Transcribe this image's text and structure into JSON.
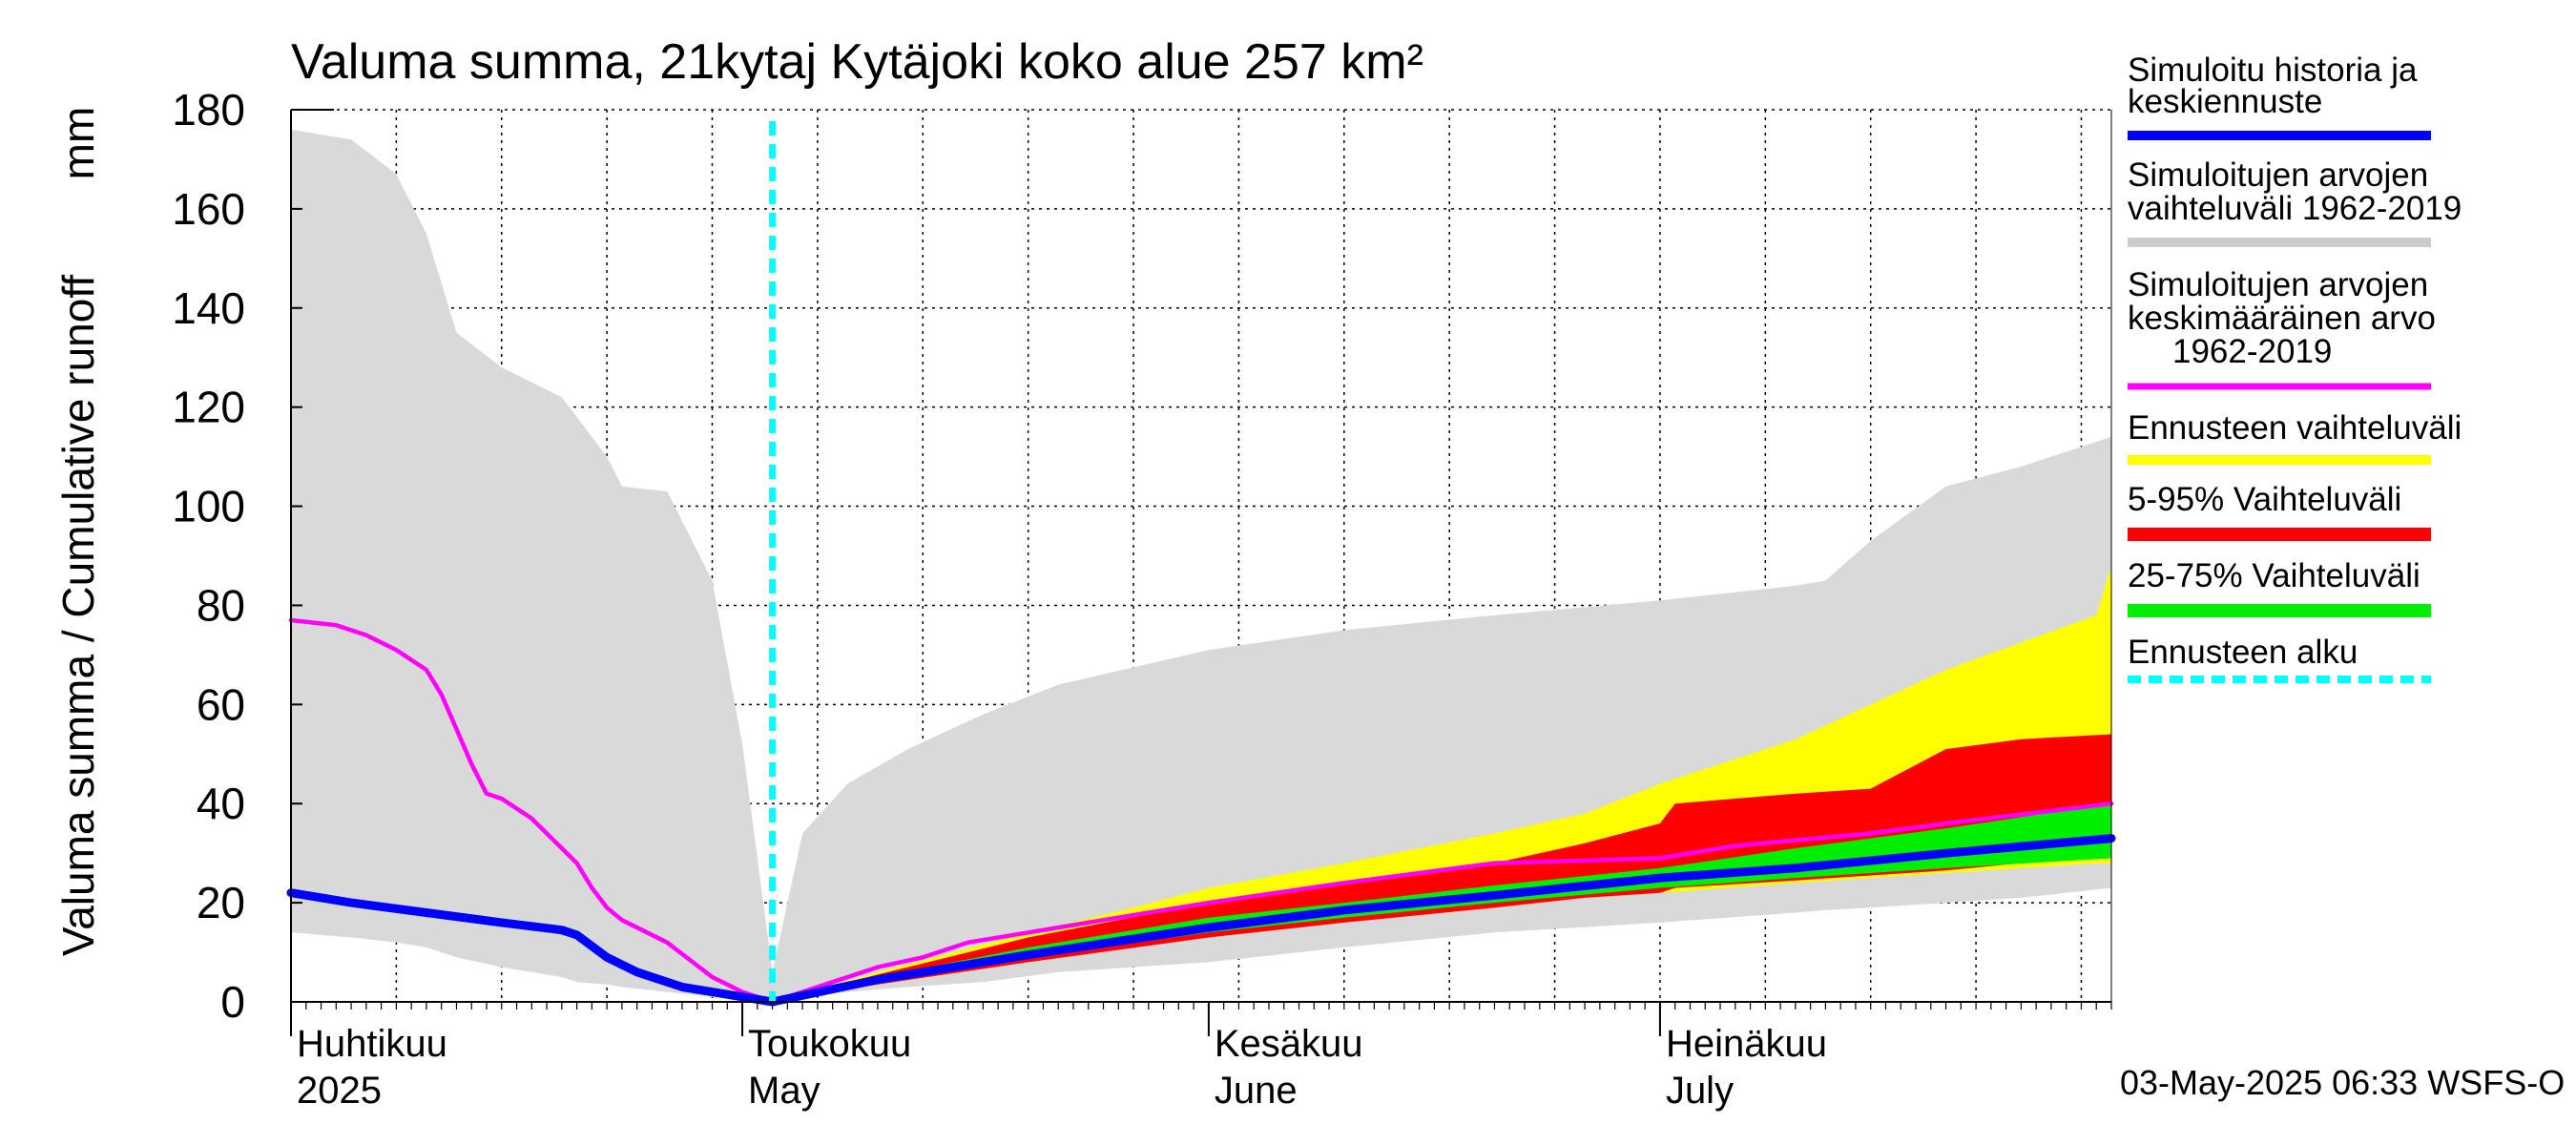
{
  "chart_data": {
    "type": "area",
    "title": "Valuma summa, 21kytaj Kytäjoki koko alue 257 km²",
    "ylabel": "Valuma summa / Cumulative runoff",
    "yunit": "mm",
    "ylim": [
      0,
      180
    ],
    "yticks": [
      0,
      20,
      40,
      60,
      80,
      100,
      120,
      140,
      160,
      180
    ],
    "xlim": [
      "2025-04-01",
      "2025-07-31"
    ],
    "grid": true,
    "legend_position": "right",
    "months": [
      {
        "label_fi": "Huhtikuu",
        "label_en": "2025",
        "date": "2025-04-01"
      },
      {
        "label_fi": "Toukokuu",
        "label_en": "May",
        "date": "2025-05-01"
      },
      {
        "label_fi": "Kesäkuu",
        "label_en": "June",
        "date": "2025-06-01"
      },
      {
        "label_fi": "Heinäkuu",
        "label_en": "July",
        "date": "2025-07-01"
      }
    ],
    "forecast_start": "2025-05-03",
    "footer": "03-May-2025 06:33 WSFS-O",
    "legend": [
      {
        "label": "Simuloitu historia ja keskiennuste",
        "color": "#0000ff",
        "style": "solid"
      },
      {
        "label": "Simuloitujen arvojen vaihteluväli 1962-2019",
        "color": "#cccccc",
        "style": "solid"
      },
      {
        "label": "Simuloitujen arvojen keskimääräinen arvo 1962-2019",
        "color": "#ff00ff",
        "style": "solid"
      },
      {
        "label": "Ennusteen vaihteluväli",
        "color": "#ffff00",
        "style": "solid"
      },
      {
        "label": "5-95% Vaihteluväli",
        "color": "#ff0000",
        "style": "solid"
      },
      {
        "label": "25-75% Vaihteluväli",
        "color": "#00ee00",
        "style": "solid"
      },
      {
        "label": "Ennusteen alku",
        "color": "#00ffff",
        "style": "dashed"
      }
    ],
    "series": [
      {
        "name": "Simuloitujen arvojen vaihteluväli 1962-2019",
        "kind": "band",
        "color": "#d9d9d9",
        "x": [
          "2025-04-01",
          "2025-04-05",
          "2025-04-08",
          "2025-04-10",
          "2025-04-12",
          "2025-04-15",
          "2025-04-19",
          "2025-04-20",
          "2025-04-22",
          "2025-04-23",
          "2025-04-26",
          "2025-04-29",
          "2025-05-01",
          "2025-05-03",
          "2025-05-05",
          "2025-05-08",
          "2025-05-12",
          "2025-05-17",
          "2025-05-22",
          "2025-06-01",
          "2025-06-10",
          "2025-06-20",
          "2025-07-01",
          "2025-07-10",
          "2025-07-12",
          "2025-07-15",
          "2025-07-20",
          "2025-07-25",
          "2025-07-31"
        ],
        "low": [
          14,
          13,
          12,
          11,
          9,
          7,
          5,
          4,
          3.5,
          3,
          2,
          1,
          0.5,
          0,
          1,
          2,
          3,
          4,
          6,
          8,
          11,
          14,
          16,
          18,
          18.5,
          19,
          20,
          21,
          23
        ],
        "high": [
          176,
          174,
          167,
          155,
          135,
          128,
          122,
          118,
          110,
          104,
          103,
          85,
          52,
          6,
          34,
          44,
          51,
          58,
          64,
          71,
          75,
          78,
          81,
          84,
          85,
          93,
          104,
          108,
          114
        ]
      },
      {
        "name": "Ennusteen vaihteluväli",
        "kind": "band",
        "color": "#ffff00",
        "x": [
          "2025-05-03",
          "2025-05-10",
          "2025-05-20",
          "2025-05-27",
          "2025-06-01",
          "2025-06-10",
          "2025-06-20",
          "2025-06-26",
          "2025-07-01",
          "2025-07-10",
          "2025-07-20",
          "2025-07-30",
          "2025-07-31"
        ],
        "low": [
          0,
          3.5,
          8,
          11,
          13,
          16,
          19,
          21,
          22,
          24,
          26,
          28,
          28
        ],
        "high": [
          0,
          6,
          14,
          19,
          23,
          28,
          34,
          38,
          44,
          53,
          67,
          78,
          88
        ]
      },
      {
        "name": "5-95% Vaihteluväli",
        "kind": "band",
        "color": "#ff0000",
        "x": [
          "2025-05-03",
          "2025-05-10",
          "2025-05-20",
          "2025-06-01",
          "2025-06-10",
          "2025-06-20",
          "2025-06-26",
          "2025-07-01",
          "2025-07-02",
          "2025-07-10",
          "2025-07-15",
          "2025-07-20",
          "2025-07-25",
          "2025-07-31"
        ],
        "low": [
          0,
          3.5,
          8,
          13,
          16,
          19,
          21,
          22,
          23,
          24.5,
          25.5,
          26.5,
          28,
          29
        ],
        "high": [
          0,
          5.5,
          13,
          20,
          24,
          28,
          32,
          36,
          40,
          42,
          43,
          51,
          53,
          54
        ]
      },
      {
        "name": "25-75% Vaihteluväli",
        "kind": "band",
        "color": "#00ee00",
        "x": [
          "2025-05-03",
          "2025-05-10",
          "2025-05-20",
          "2025-06-01",
          "2025-06-10",
          "2025-06-20",
          "2025-07-01",
          "2025-07-10",
          "2025-07-20",
          "2025-07-31"
        ],
        "low": [
          0,
          4,
          9,
          14,
          17,
          20,
          23,
          25,
          27,
          29
        ],
        "high": [
          0,
          5,
          11,
          17,
          20,
          23.5,
          27,
          31,
          35,
          40
        ]
      },
      {
        "name": "Simuloitujen arvojen keskimääräinen arvo 1962-2019",
        "kind": "line",
        "color": "#ff00ff",
        "x": [
          "2025-04-01",
          "2025-04-04",
          "2025-04-06",
          "2025-04-08",
          "2025-04-10",
          "2025-04-11",
          "2025-04-12",
          "2025-04-13",
          "2025-04-14",
          "2025-04-15",
          "2025-04-17",
          "2025-04-20",
          "2025-04-21",
          "2025-04-22",
          "2025-04-23",
          "2025-04-26",
          "2025-04-29",
          "2025-05-01",
          "2025-05-03",
          "2025-05-06",
          "2025-05-10",
          "2025-05-13",
          "2025-05-16",
          "2025-05-20",
          "2025-05-24",
          "2025-06-01",
          "2025-06-10",
          "2025-06-20",
          "2025-07-01",
          "2025-07-06",
          "2025-07-15",
          "2025-07-20",
          "2025-07-31"
        ],
        "y": [
          77,
          76,
          74,
          71,
          67,
          62,
          55,
          48,
          42,
          41,
          37,
          28,
          23,
          19,
          16.5,
          12,
          5,
          2,
          0,
          3,
          7,
          9,
          12,
          14,
          16,
          20,
          24,
          28,
          29,
          31.5,
          34,
          36,
          40
        ]
      },
      {
        "name": "Simuloitu historia ja keskiennuste",
        "kind": "line",
        "color": "#0000ff",
        "x": [
          "2025-04-01",
          "2025-04-05",
          "2025-04-10",
          "2025-04-15",
          "2025-04-19",
          "2025-04-20",
          "2025-04-22",
          "2025-04-24",
          "2025-04-27",
          "2025-05-01",
          "2025-05-03",
          "2025-05-10",
          "2025-05-20",
          "2025-06-01",
          "2025-06-10",
          "2025-06-20",
          "2025-07-01",
          "2025-07-10",
          "2025-07-20",
          "2025-07-31"
        ],
        "y": [
          22,
          20,
          18,
          16,
          14.5,
          13.5,
          9,
          6,
          3,
          1,
          0,
          4.5,
          9.5,
          15,
          18.5,
          21.5,
          25,
          27,
          30,
          33
        ]
      }
    ]
  }
}
